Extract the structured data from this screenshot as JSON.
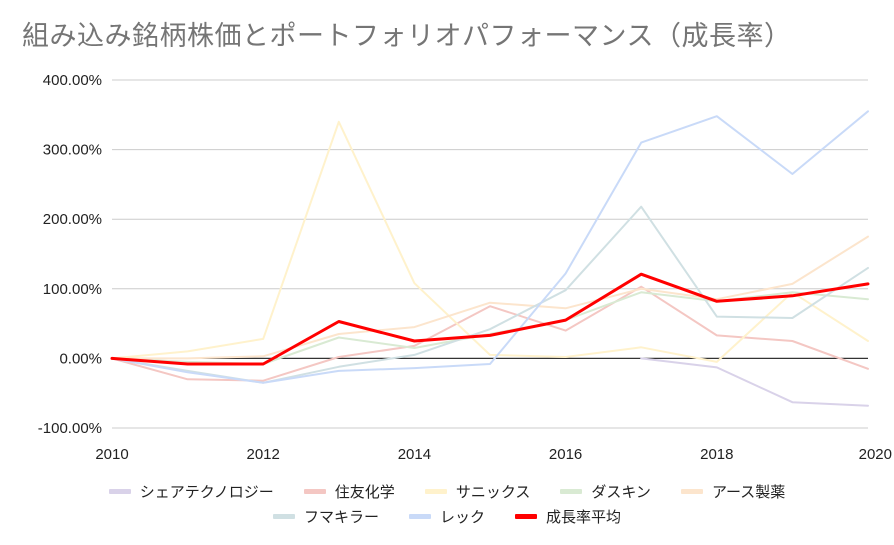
{
  "chart_data": {
    "type": "line",
    "title": "組み込み銘柄株価とポートフォリオパフォーマンス（成長率）",
    "xlabel": "",
    "ylabel": "",
    "x": [
      2010,
      2011,
      2012,
      2013,
      2014,
      2015,
      2016,
      2017,
      2018,
      2019,
      2020
    ],
    "x_ticks": [
      "2010",
      "2012",
      "2014",
      "2016",
      "2018",
      "2020"
    ],
    "ylim": [
      -100,
      400
    ],
    "y_ticks": [
      "400.00%",
      "300.00%",
      "200.00%",
      "100.00%",
      "0.00%",
      "-100.00%"
    ],
    "grid": true,
    "legend_position": "bottom",
    "series": [
      {
        "name": "シェアテクノロジー",
        "color": "#d9d2e9",
        "width": 2,
        "values": [
          null,
          null,
          null,
          null,
          null,
          null,
          null,
          0,
          -13,
          -63,
          -68
        ]
      },
      {
        "name": "住友化学",
        "color": "#f4c7c3",
        "width": 2,
        "values": [
          0,
          -30,
          -32,
          2,
          18,
          75,
          40,
          103,
          33,
          25,
          -15
        ]
      },
      {
        "name": "サニックス",
        "color": "#fff2cc",
        "width": 2,
        "values": [
          0,
          10,
          28,
          340,
          108,
          5,
          2,
          16,
          -5,
          95,
          25
        ]
      },
      {
        "name": "ダスキン",
        "color": "#d9ead3",
        "width": 2,
        "values": [
          0,
          -5,
          -8,
          30,
          15,
          35,
          55,
          95,
          82,
          95,
          85
        ]
      },
      {
        "name": "アース製薬",
        "color": "#fce5cd",
        "width": 2,
        "values": [
          0,
          0,
          3,
          35,
          45,
          80,
          72,
          100,
          85,
          107,
          175
        ]
      },
      {
        "name": "フマキラー",
        "color": "#d0e0e3",
        "width": 2,
        "values": [
          0,
          -18,
          -35,
          -12,
          5,
          42,
          98,
          218,
          60,
          58,
          130
        ]
      },
      {
        "name": "レック",
        "color": "#c9daf8",
        "width": 2,
        "values": [
          0,
          -20,
          -35,
          -18,
          -14,
          -8,
          122,
          310,
          348,
          265,
          355
        ]
      },
      {
        "name": "成長率平均",
        "color": "#ff0000",
        "width": 3,
        "values": [
          0,
          -8,
          -8,
          53,
          25,
          33,
          55,
          121,
          82,
          90,
          107
        ]
      }
    ]
  }
}
